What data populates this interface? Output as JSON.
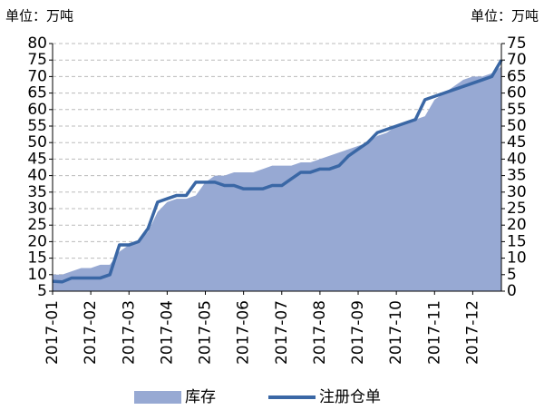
{
  "chart_data": {
    "type": "combo",
    "unit_left": "单位：万吨",
    "unit_right": "单位：万吨",
    "categories": [
      "2017-01",
      null,
      null,
      null,
      "2017-02",
      null,
      null,
      null,
      "2017-03",
      null,
      null,
      null,
      "2017-04",
      null,
      null,
      null,
      "2017-05",
      null,
      null,
      null,
      "2017-06",
      null,
      null,
      null,
      "2017-07",
      null,
      null,
      null,
      "2017-08",
      null,
      null,
      null,
      "2017-09",
      null,
      null,
      null,
      "2017-10",
      null,
      null,
      null,
      "2017-11",
      null,
      null,
      null,
      "2017-12",
      null,
      null,
      null
    ],
    "ylim": [
      5,
      80
    ],
    "yticks": [
      5,
      10,
      15,
      20,
      25,
      30,
      35,
      40,
      45,
      50,
      55,
      60,
      65,
      70,
      75,
      80
    ],
    "y2lim": [
      0,
      75
    ],
    "y2ticks": [
      0,
      5,
      10,
      15,
      20,
      25,
      30,
      35,
      40,
      45,
      50,
      55,
      60,
      65,
      70,
      75
    ],
    "grid": true,
    "series": [
      {
        "name": "库存",
        "type": "area",
        "color": "#97a9d3",
        "values": [
          10,
          10,
          11,
          12,
          12,
          13,
          13,
          17,
          19,
          20,
          23,
          29,
          32,
          33,
          33,
          34,
          38,
          40,
          40,
          41,
          41,
          41,
          42,
          43,
          43,
          43,
          44,
          44,
          45,
          46,
          47,
          48,
          49,
          50,
          52,
          53,
          55,
          56,
          57,
          58,
          63,
          65,
          67,
          69,
          70,
          70,
          71,
          73
        ]
      },
      {
        "name": "注册仓单",
        "type": "line",
        "axis": "y2",
        "color": "#3a67a5",
        "values": [
          3,
          2.8,
          4,
          4,
          4,
          4,
          5,
          14,
          14,
          15,
          19,
          27,
          28,
          29,
          29,
          33,
          33,
          33,
          32,
          32,
          31,
          31,
          31,
          32,
          32,
          34,
          36,
          36,
          37,
          37,
          38,
          41,
          43,
          45,
          48,
          49,
          50,
          51,
          52,
          58,
          59,
          60,
          61,
          62,
          63,
          64,
          65,
          70
        ]
      }
    ]
  }
}
